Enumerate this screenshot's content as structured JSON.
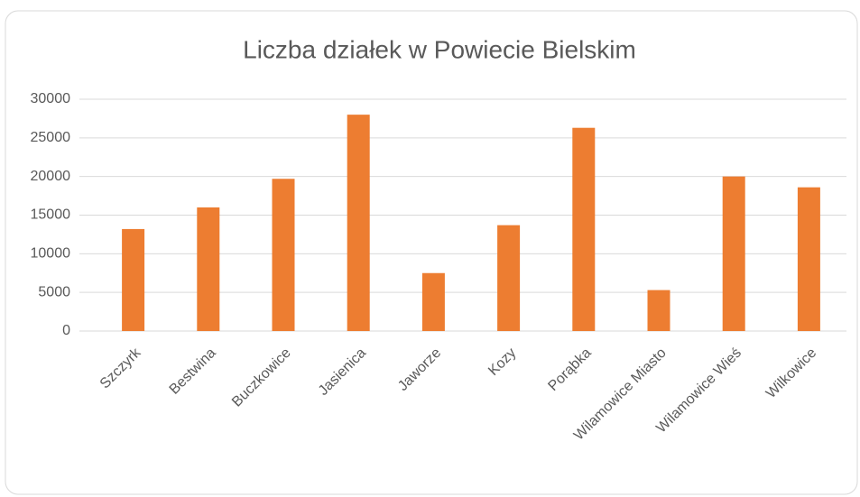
{
  "chart_data": {
    "type": "bar",
    "title": "Liczba działek w Powiecie Bielskim",
    "categories": [
      "Szczyrk",
      "Bestwina",
      "Buczkowice",
      "Jasienica",
      "Jaworze",
      "Kozy",
      "Porąbka",
      "Wilamowice Miasto",
      "Wilamowice Wieś",
      "Wilkowice"
    ],
    "values": [
      13200,
      16000,
      19700,
      28000,
      7500,
      13700,
      26300,
      5300,
      20000,
      18600
    ],
    "color": "#ed7d31",
    "ylim": [
      0,
      30000
    ],
    "yticks": [
      0,
      5000,
      10000,
      15000,
      20000,
      25000,
      30000
    ],
    "grid": true
  }
}
